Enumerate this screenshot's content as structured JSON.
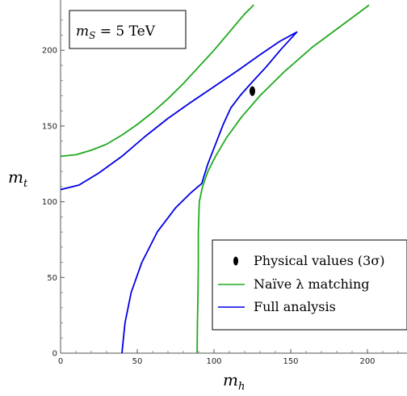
{
  "chart_data": {
    "type": "line",
    "title": "",
    "annotation": "m_S = 5 TeV",
    "xlabel": "m_h",
    "ylabel": "m_t",
    "xlim": [
      0,
      225
    ],
    "ylim": [
      0,
      230
    ],
    "x_ticks": [
      0,
      50,
      100,
      150,
      200
    ],
    "y_ticks": [
      0,
      50,
      100,
      150,
      200
    ],
    "grid": false,
    "legend_position": "bottom-right",
    "colors": {
      "naive": "#1faa1f",
      "full": "#0000e6",
      "point": "#000000"
    },
    "legend": [
      {
        "label": "Physical values (3σ)",
        "marker": "ellipse"
      },
      {
        "label": "Naïve λ matching",
        "marker": "line",
        "color": "#1faa1f"
      },
      {
        "label": "Full analysis",
        "marker": "line",
        "color": "#0000e6"
      }
    ],
    "series": [
      {
        "id": "naive-upper",
        "color": "#1faa1f",
        "points": [
          [
            0,
            130
          ],
          [
            10,
            131
          ],
          [
            20,
            134
          ],
          [
            30,
            138
          ],
          [
            40,
            144
          ],
          [
            50,
            151
          ],
          [
            60,
            159
          ],
          [
            70,
            168
          ],
          [
            80,
            178
          ],
          [
            90,
            189
          ],
          [
            100,
            200
          ],
          [
            110,
            212
          ],
          [
            120,
            224
          ],
          [
            126,
            230
          ]
        ]
      },
      {
        "id": "naive-lower",
        "color": "#1faa1f",
        "points": [
          [
            89,
            0
          ],
          [
            89.2,
            20
          ],
          [
            89.6,
            40
          ],
          [
            89.8,
            60
          ],
          [
            89.8,
            80
          ],
          [
            90.4,
            100
          ],
          [
            92.5,
            110
          ],
          [
            96,
            120
          ],
          [
            101,
            130
          ],
          [
            108,
            142
          ],
          [
            118,
            156
          ],
          [
            130,
            170
          ],
          [
            146,
            186
          ],
          [
            164,
            202
          ],
          [
            180,
            214
          ],
          [
            200,
            229
          ],
          [
            201,
            230
          ]
        ]
      },
      {
        "id": "full",
        "color": "#0000e6",
        "points": [
          [
            40,
            0
          ],
          [
            42,
            20
          ],
          [
            46,
            40
          ],
          [
            53,
            60
          ],
          [
            63,
            80
          ],
          [
            75,
            96
          ],
          [
            85,
            106
          ],
          [
            92,
            112
          ],
          [
            96,
            125
          ],
          [
            101,
            138
          ],
          [
            106,
            151
          ],
          [
            111,
            162
          ],
          [
            117,
            170
          ],
          [
            124,
            178
          ],
          [
            134,
            189
          ],
          [
            144,
            201
          ],
          [
            154,
            212
          ],
          [
            143,
            206
          ],
          [
            130,
            197
          ],
          [
            116,
            187
          ],
          [
            100,
            176
          ],
          [
            84,
            165
          ],
          [
            70,
            155
          ],
          [
            55,
            143
          ],
          [
            40,
            130
          ],
          [
            25,
            119
          ],
          [
            12,
            111
          ],
          [
            0,
            108
          ]
        ]
      }
    ],
    "physical_point": {
      "x": 125,
      "y": 173
    }
  }
}
